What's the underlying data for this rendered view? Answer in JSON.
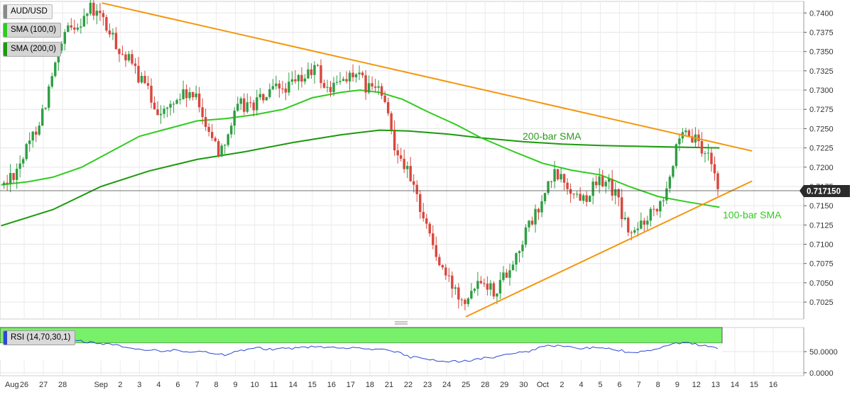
{
  "legend": {
    "symbol": "AUD/USD",
    "sma100": "SMA (100,0)",
    "sma200": "SMA (200,0)",
    "rsi": "RSI (14,70,30,1)",
    "sma100_color": "#2ecc1d",
    "sma200_color": "#1a9a0c"
  },
  "annotations": {
    "sma200_label": "200-bar SMA",
    "sma100_label": "100-bar SMA"
  },
  "current_price": "0.717150",
  "colors": {
    "up_candle": "#2e9e43",
    "down_candle": "#d8473d",
    "trendline": "#f5960d",
    "rsi_line": "#2b47d6",
    "rsi_overbought": "#78f06a",
    "rsi_oversold": "#ff7b7b"
  },
  "chart_data": {
    "type": "candlestick",
    "y_ticks": [
      "0.7400",
      "0.7375",
      "0.7350",
      "0.7325",
      "0.7300",
      "0.7275",
      "0.7250",
      "0.7225",
      "0.7200",
      "0.7175",
      "0.7150",
      "0.7125",
      "0.7100",
      "0.7075",
      "0.7050",
      "0.7025"
    ],
    "ylim": [
      0.7003,
      0.7415
    ],
    "x_ticks": [
      {
        "label": "Aug",
        "x": 0
      },
      {
        "label": "26",
        "x": 1
      },
      {
        "label": "27",
        "x": 2
      },
      {
        "label": "28",
        "x": 3
      },
      {
        "label": "Sep",
        "x": 5
      },
      {
        "label": "2",
        "x": 6
      },
      {
        "label": "3",
        "x": 7
      },
      {
        "label": "4",
        "x": 8
      },
      {
        "label": "6",
        "x": 9
      },
      {
        "label": "7",
        "x": 10
      },
      {
        "label": "8",
        "x": 11
      },
      {
        "label": "9",
        "x": 12
      },
      {
        "label": "10",
        "x": 13
      },
      {
        "label": "11",
        "x": 14
      },
      {
        "label": "14",
        "x": 15
      },
      {
        "label": "15",
        "x": 16
      },
      {
        "label": "16",
        "x": 17
      },
      {
        "label": "17",
        "x": 18
      },
      {
        "label": "18",
        "x": 19
      },
      {
        "label": "21",
        "x": 20
      },
      {
        "label": "22",
        "x": 21
      },
      {
        "label": "23",
        "x": 22
      },
      {
        "label": "24",
        "x": 23
      },
      {
        "label": "25",
        "x": 24
      },
      {
        "label": "28",
        "x": 25
      },
      {
        "label": "29",
        "x": 26
      },
      {
        "label": "30",
        "x": 27
      },
      {
        "label": "Oct",
        "x": 28
      },
      {
        "label": "2",
        "x": 29
      },
      {
        "label": "4",
        "x": 30
      },
      {
        "label": "5",
        "x": 31
      },
      {
        "label": "6",
        "x": 32
      },
      {
        "label": "7",
        "x": 33
      },
      {
        "label": "8",
        "x": 34
      },
      {
        "label": "9",
        "x": 35
      },
      {
        "label": "12",
        "x": 36
      },
      {
        "label": "13",
        "x": 37
      },
      {
        "label": "14",
        "x": 38
      },
      {
        "label": "15",
        "x": 39
      },
      {
        "label": "16",
        "x": 40
      }
    ],
    "price_waypoints": [
      [
        -0.1,
        0.7175
      ],
      [
        0.5,
        0.7195
      ],
      [
        1.2,
        0.7225
      ],
      [
        2.0,
        0.7275
      ],
      [
        2.6,
        0.733
      ],
      [
        3.2,
        0.7375
      ],
      [
        3.9,
        0.739
      ],
      [
        4.4,
        0.7405
      ],
      [
        5.0,
        0.7395
      ],
      [
        5.5,
        0.737
      ],
      [
        6.2,
        0.7345
      ],
      [
        6.8,
        0.7325
      ],
      [
        7.4,
        0.73
      ],
      [
        7.8,
        0.728
      ],
      [
        8.3,
        0.727
      ],
      [
        9.0,
        0.729
      ],
      [
        9.5,
        0.7295
      ],
      [
        10.0,
        0.7285
      ],
      [
        10.7,
        0.7245
      ],
      [
        11.1,
        0.722
      ],
      [
        11.6,
        0.7245
      ],
      [
        12.2,
        0.728
      ],
      [
        12.8,
        0.728
      ],
      [
        13.5,
        0.729
      ],
      [
        14.1,
        0.73
      ],
      [
        14.9,
        0.7305
      ],
      [
        15.5,
        0.7315
      ],
      [
        16.2,
        0.733
      ],
      [
        16.7,
        0.73
      ],
      [
        17.2,
        0.7305
      ],
      [
        17.8,
        0.732
      ],
      [
        18.4,
        0.7315
      ],
      [
        19.0,
        0.73
      ],
      [
        19.4,
        0.7305
      ],
      [
        19.9,
        0.727
      ],
      [
        20.3,
        0.723
      ],
      [
        20.8,
        0.7205
      ],
      [
        21.2,
        0.7175
      ],
      [
        21.7,
        0.7145
      ],
      [
        22.1,
        0.7115
      ],
      [
        22.5,
        0.708
      ],
      [
        23.0,
        0.7055
      ],
      [
        23.5,
        0.704
      ],
      [
        24.0,
        0.703
      ],
      [
        24.4,
        0.705
      ],
      [
        24.9,
        0.706
      ],
      [
        25.2,
        0.7045
      ],
      [
        25.5,
        0.704
      ],
      [
        26.0,
        0.706
      ],
      [
        26.6,
        0.7085
      ],
      [
        27.2,
        0.712
      ],
      [
        27.8,
        0.7145
      ],
      [
        28.2,
        0.717
      ],
      [
        28.6,
        0.719
      ],
      [
        29.0,
        0.7185
      ],
      [
        29.6,
        0.7165
      ],
      [
        30.1,
        0.716
      ],
      [
        30.7,
        0.7175
      ],
      [
        31.2,
        0.7185
      ],
      [
        31.8,
        0.7165
      ],
      [
        32.3,
        0.7125
      ],
      [
        32.7,
        0.711
      ],
      [
        33.2,
        0.713
      ],
      [
        33.7,
        0.7145
      ],
      [
        34.2,
        0.716
      ],
      [
        34.6,
        0.719
      ],
      [
        35.0,
        0.7225
      ],
      [
        35.4,
        0.724
      ],
      [
        35.9,
        0.7235
      ],
      [
        36.3,
        0.722
      ],
      [
        36.8,
        0.7212
      ],
      [
        37.15,
        0.7172
      ]
    ],
    "series": [
      {
        "name": "200-bar SMA",
        "points": [
          [
            -0.2,
            0.7124
          ],
          [
            2.5,
            0.7145
          ],
          [
            5.0,
            0.7175
          ],
          [
            7.5,
            0.7195
          ],
          [
            10.0,
            0.721
          ],
          [
            12.5,
            0.722
          ],
          [
            15.0,
            0.7232
          ],
          [
            17.5,
            0.7242
          ],
          [
            19.5,
            0.7248
          ],
          [
            21.0,
            0.7247
          ],
          [
            23.0,
            0.7243
          ],
          [
            24.8,
            0.7238
          ],
          [
            27.0,
            0.7233
          ],
          [
            29.0,
            0.723
          ],
          [
            31.0,
            0.7228
          ],
          [
            33.0,
            0.7227
          ],
          [
            35.0,
            0.7226
          ],
          [
            37.2,
            0.7225
          ]
        ]
      },
      {
        "name": "100-bar SMA",
        "points": [
          [
            -0.2,
            0.7177
          ],
          [
            1.2,
            0.7181
          ],
          [
            2.5,
            0.7187
          ],
          [
            4.0,
            0.72
          ],
          [
            5.5,
            0.722
          ],
          [
            7.0,
            0.724
          ],
          [
            8.5,
            0.725
          ],
          [
            10.0,
            0.726
          ],
          [
            11.5,
            0.7263
          ],
          [
            13.0,
            0.7268
          ],
          [
            14.5,
            0.7275
          ],
          [
            16.0,
            0.729
          ],
          [
            17.5,
            0.7297
          ],
          [
            18.5,
            0.73
          ],
          [
            19.5,
            0.7297
          ],
          [
            20.7,
            0.7288
          ],
          [
            22.0,
            0.7272
          ],
          [
            23.5,
            0.7255
          ],
          [
            24.8,
            0.7238
          ],
          [
            26.5,
            0.722
          ],
          [
            28.0,
            0.7205
          ],
          [
            29.5,
            0.7196
          ],
          [
            31.0,
            0.719
          ],
          [
            32.5,
            0.7175
          ],
          [
            34.0,
            0.7162
          ],
          [
            35.5,
            0.7155
          ],
          [
            37.2,
            0.7148
          ]
        ]
      }
    ],
    "trendlines": [
      {
        "name": "resistance",
        "from": [
          5.05,
          0.7413
        ],
        "to": [
          38.9,
          0.7221
        ]
      },
      {
        "name": "support",
        "from": [
          24.0,
          0.7006
        ],
        "to": [
          38.9,
          0.7182
        ]
      }
    ],
    "rsi": {
      "y_ticks": [
        "50.0000",
        "0.0000"
      ],
      "ylim": [
        -7,
        107
      ],
      "overbought": 70,
      "oversold": 30,
      "waypoints": [
        [
          0,
          70
        ],
        [
          1,
          72
        ],
        [
          2,
          74
        ],
        [
          3,
          76
        ],
        [
          4,
          75
        ],
        [
          5,
          70
        ],
        [
          6,
          64
        ],
        [
          7,
          55
        ],
        [
          8,
          52
        ],
        [
          9,
          53
        ],
        [
          10,
          50
        ],
        [
          11,
          45
        ],
        [
          11.5,
          42
        ],
        [
          12,
          50
        ],
        [
          13,
          60
        ],
        [
          14,
          55
        ],
        [
          15,
          58
        ],
        [
          16,
          62
        ],
        [
          17,
          60
        ],
        [
          18,
          58
        ],
        [
          19,
          56
        ],
        [
          20,
          52
        ],
        [
          20.5,
          47
        ],
        [
          21,
          38
        ],
        [
          22,
          31
        ],
        [
          23,
          28
        ],
        [
          23.5,
          26
        ],
        [
          24,
          28
        ],
        [
          24.8,
          33
        ],
        [
          25.5,
          38
        ],
        [
          26.5,
          45
        ],
        [
          27.5,
          52
        ],
        [
          28,
          62
        ],
        [
          29,
          64
        ],
        [
          30,
          58
        ],
        [
          31,
          60
        ],
        [
          32,
          53
        ],
        [
          32.8,
          46
        ],
        [
          33.5,
          52
        ],
        [
          34.5,
          62
        ],
        [
          35.1,
          71
        ],
        [
          35.6,
          70
        ],
        [
          36.3,
          64
        ],
        [
          37.0,
          58
        ],
        [
          37.2,
          55
        ]
      ]
    }
  }
}
